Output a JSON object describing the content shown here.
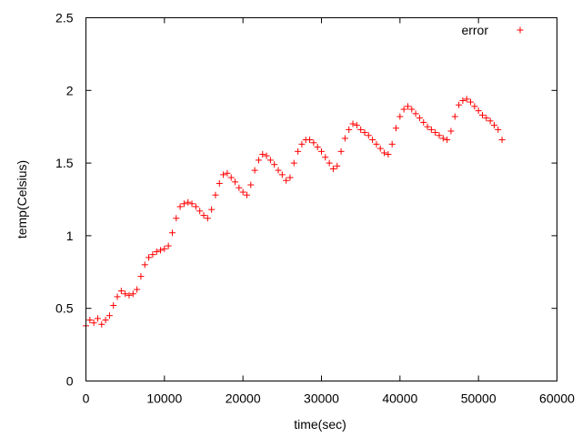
{
  "chart_data": {
    "type": "scatter",
    "xlabel": "time(sec)",
    "ylabel": "temp(Celsius)",
    "xlim": [
      0,
      60000
    ],
    "ylim": [
      0,
      2.5
    ],
    "x_ticks": [
      0,
      10000,
      20000,
      30000,
      40000,
      50000,
      60000
    ],
    "x_tick_labels": [
      "0",
      "10000",
      "20000",
      "30000",
      "40000",
      "50000",
      "60000"
    ],
    "y_ticks": [
      0,
      0.5,
      1,
      1.5,
      2,
      2.5
    ],
    "y_tick_labels": [
      "0",
      "0.5",
      "1",
      "1.5",
      "2",
      "2.5"
    ],
    "grid": false,
    "legend_position": "top-right",
    "marker": "plus",
    "series": [
      {
        "name": "error",
        "color": "#ff0000",
        "points": [
          [
            0,
            0.38
          ],
          [
            500,
            0.42
          ],
          [
            1000,
            0.4
          ],
          [
            1500,
            0.43
          ],
          [
            2000,
            0.39
          ],
          [
            2500,
            0.42
          ],
          [
            3000,
            0.45
          ],
          [
            3500,
            0.52
          ],
          [
            4000,
            0.58
          ],
          [
            4500,
            0.62
          ],
          [
            5000,
            0.6
          ],
          [
            5500,
            0.59
          ],
          [
            6000,
            0.6
          ],
          [
            6500,
            0.63
          ],
          [
            7000,
            0.72
          ],
          [
            7500,
            0.8
          ],
          [
            8000,
            0.85
          ],
          [
            8500,
            0.87
          ],
          [
            9000,
            0.89
          ],
          [
            9500,
            0.9
          ],
          [
            10000,
            0.91
          ],
          [
            10500,
            0.93
          ],
          [
            11000,
            1.02
          ],
          [
            11500,
            1.12
          ],
          [
            12000,
            1.2
          ],
          [
            12500,
            1.22
          ],
          [
            13000,
            1.23
          ],
          [
            13500,
            1.22
          ],
          [
            14000,
            1.2
          ],
          [
            14500,
            1.17
          ],
          [
            15000,
            1.14
          ],
          [
            15500,
            1.12
          ],
          [
            16000,
            1.18
          ],
          [
            16500,
            1.28
          ],
          [
            17000,
            1.36
          ],
          [
            17500,
            1.42
          ],
          [
            18000,
            1.43
          ],
          [
            18500,
            1.4
          ],
          [
            19000,
            1.37
          ],
          [
            19500,
            1.33
          ],
          [
            20000,
            1.3
          ],
          [
            20500,
            1.28
          ],
          [
            21000,
            1.35
          ],
          [
            21500,
            1.45
          ],
          [
            22000,
            1.52
          ],
          [
            22500,
            1.56
          ],
          [
            23000,
            1.55
          ],
          [
            23500,
            1.52
          ],
          [
            24000,
            1.49
          ],
          [
            24500,
            1.45
          ],
          [
            25000,
            1.42
          ],
          [
            25500,
            1.38
          ],
          [
            26000,
            1.4
          ],
          [
            26500,
            1.5
          ],
          [
            27000,
            1.58
          ],
          [
            27500,
            1.63
          ],
          [
            28000,
            1.66
          ],
          [
            28500,
            1.66
          ],
          [
            29000,
            1.64
          ],
          [
            29500,
            1.61
          ],
          [
            30000,
            1.58
          ],
          [
            30500,
            1.54
          ],
          [
            31000,
            1.5
          ],
          [
            31500,
            1.46
          ],
          [
            32000,
            1.48
          ],
          [
            32500,
            1.58
          ],
          [
            33000,
            1.67
          ],
          [
            33500,
            1.73
          ],
          [
            34000,
            1.77
          ],
          [
            34500,
            1.76
          ],
          [
            35000,
            1.73
          ],
          [
            35500,
            1.71
          ],
          [
            36000,
            1.69
          ],
          [
            36500,
            1.66
          ],
          [
            37000,
            1.63
          ],
          [
            37500,
            1.6
          ],
          [
            38000,
            1.57
          ],
          [
            38500,
            1.56
          ],
          [
            39000,
            1.63
          ],
          [
            39500,
            1.74
          ],
          [
            40000,
            1.82
          ],
          [
            40500,
            1.87
          ],
          [
            41000,
            1.89
          ],
          [
            41500,
            1.87
          ],
          [
            42000,
            1.84
          ],
          [
            42500,
            1.81
          ],
          [
            43000,
            1.78
          ],
          [
            43500,
            1.75
          ],
          [
            44000,
            1.73
          ],
          [
            44500,
            1.71
          ],
          [
            45000,
            1.69
          ],
          [
            45500,
            1.67
          ],
          [
            46000,
            1.66
          ],
          [
            46500,
            1.72
          ],
          [
            47000,
            1.82
          ],
          [
            47500,
            1.9
          ],
          [
            48000,
            1.93
          ],
          [
            48500,
            1.94
          ],
          [
            49000,
            1.92
          ],
          [
            49500,
            1.89
          ],
          [
            50000,
            1.86
          ],
          [
            50500,
            1.83
          ],
          [
            51000,
            1.81
          ],
          [
            51500,
            1.79
          ],
          [
            52000,
            1.76
          ],
          [
            52500,
            1.73
          ],
          [
            53000,
            1.66
          ]
        ]
      }
    ]
  }
}
